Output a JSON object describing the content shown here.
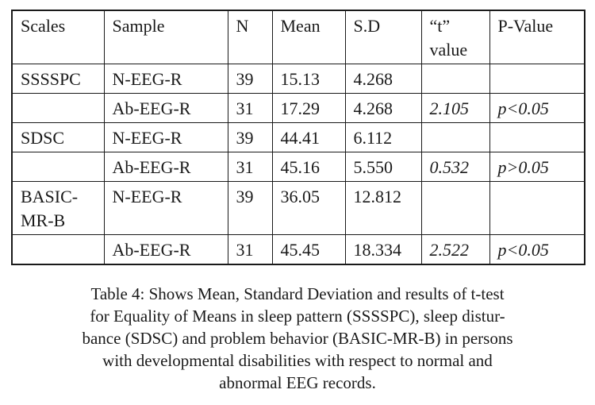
{
  "table": {
    "headers": [
      "Scales",
      "Sample",
      "N",
      "Mean",
      "S.D",
      "“t” value",
      "P-Value"
    ],
    "t_header_line1": "“t”",
    "t_header_line2": "value",
    "rows": [
      {
        "scale": "SSSSPC",
        "sample": "N-EEG-R",
        "n": "39",
        "mean": "15.13",
        "sd": "4.268",
        "t": "",
        "p": ""
      },
      {
        "scale": "",
        "sample": "Ab-EEG-R",
        "n": "31",
        "mean": "17.29",
        "sd": "4.268",
        "t": "2.105",
        "p": "p<0.05"
      },
      {
        "scale": "SDSC",
        "sample": "N-EEG-R",
        "n": "39",
        "mean": "44.41",
        "sd": "6.112",
        "t": "",
        "p": ""
      },
      {
        "scale": "",
        "sample": "Ab-EEG-R",
        "n": "31",
        "mean": "45.16",
        "sd": "5.550",
        "t": "0.532",
        "p": "p>0.05"
      },
      {
        "scale": "BASIC-MR-B",
        "scale_line1": "BASIC-",
        "scale_line2": "MR-B",
        "sample": "N-EEG-R",
        "n": "39",
        "mean": "36.05",
        "sd": "12.812",
        "t": "",
        "p": ""
      },
      {
        "scale": "",
        "sample": "Ab-EEG-R",
        "n": "31",
        "mean": "45.45",
        "sd": "18.334",
        "t": "2.522",
        "p": "p<0.05"
      }
    ]
  },
  "caption": {
    "text": "Table 4: Shows Mean, Standard Deviation and results of t-test for Equality of Means in sleep pattern (SSSSPC), sleep disturbance (SDSC) and problem behavior (BASIC-MR-B) in persons with developmental disabilities with respect to normal and abnormal EEG records.",
    "lines": [
      "Table 4: Shows Mean, Standard Deviation and results of t-test",
      "for Equality of Means in sleep pattern (SSSSPC), sleep distur-",
      "bance (SDSC) and problem behavior (BASIC-MR-B) in persons",
      "with developmental disabilities with respect to normal and",
      "abnormal EEG records."
    ]
  }
}
